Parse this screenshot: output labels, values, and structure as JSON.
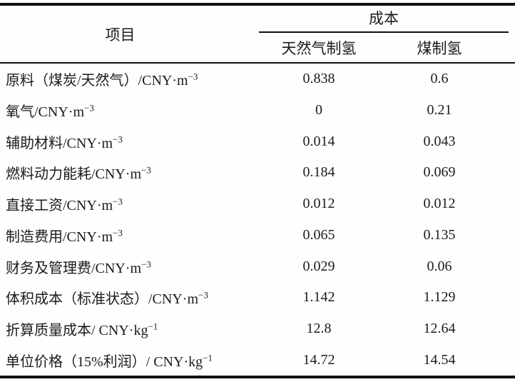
{
  "table": {
    "header": {
      "item_label": "项目",
      "cost_label": "成本",
      "sub_col1": "天然气制氢",
      "sub_col2": "煤制氢"
    },
    "rows": [
      {
        "label": "原料（煤炭/天然气）/CNY·m",
        "sup": "−3",
        "values": [
          "0.838",
          "0.6"
        ]
      },
      {
        "label": "氧气/CNY·m",
        "sup": "−3",
        "values": [
          "0",
          "0.21"
        ]
      },
      {
        "label": "辅助材料/CNY·m",
        "sup": "−3",
        "values": [
          "0.014",
          "0.043"
        ]
      },
      {
        "label": "燃料动力能耗/CNY·m",
        "sup": "−3",
        "values": [
          "0.184",
          "0.069"
        ]
      },
      {
        "label": "直接工资/CNY·m",
        "sup": "−3",
        "values": [
          "0.012",
          "0.012"
        ]
      },
      {
        "label": "制造费用/CNY·m",
        "sup": "−3",
        "values": [
          "0.065",
          "0.135"
        ]
      },
      {
        "label": "财务及管理费/CNY·m",
        "sup": "−3",
        "values": [
          "0.029",
          "0.06"
        ]
      },
      {
        "label": "体积成本（标准状态）/CNY·m",
        "sup": "−3",
        "values": [
          "1.142",
          "1.129"
        ]
      },
      {
        "label": "折算质量成本/ CNY·kg",
        "sup": "−1",
        "values": [
          "12.8",
          "12.64"
        ]
      },
      {
        "label": "单位价格（15%利润）/ CNY·kg",
        "sup": "−1",
        "values": [
          "14.72",
          "14.54"
        ]
      }
    ]
  },
  "chart_data": {
    "type": "table",
    "title": "",
    "row_header": "项目",
    "group_header": "成本",
    "columns": [
      "天然气制氢",
      "煤制氢"
    ],
    "rows": [
      "原料（煤炭/天然气）/CNY·m⁻³",
      "氧气/CNY·m⁻³",
      "辅助材料/CNY·m⁻³",
      "燃料动力能耗/CNY·m⁻³",
      "直接工资/CNY·m⁻³",
      "制造费用/CNY·m⁻³",
      "财务及管理费/CNY·m⁻³",
      "体积成本（标准状态）/CNY·m⁻³",
      "折算质量成本/ CNY·kg⁻¹",
      "单位价格（15%利润）/ CNY·kg⁻¹"
    ],
    "series": [
      {
        "name": "天然气制氢",
        "values": [
          0.838,
          0,
          0.014,
          0.184,
          0.012,
          0.065,
          0.029,
          1.142,
          12.8,
          14.72
        ]
      },
      {
        "name": "煤制氢",
        "values": [
          0.6,
          0.21,
          0.043,
          0.069,
          0.012,
          0.135,
          0.06,
          1.129,
          12.64,
          14.54
        ]
      }
    ]
  },
  "colors": {
    "rule": "#111111",
    "text": "#1b1b1b",
    "background": "#fefefe"
  }
}
